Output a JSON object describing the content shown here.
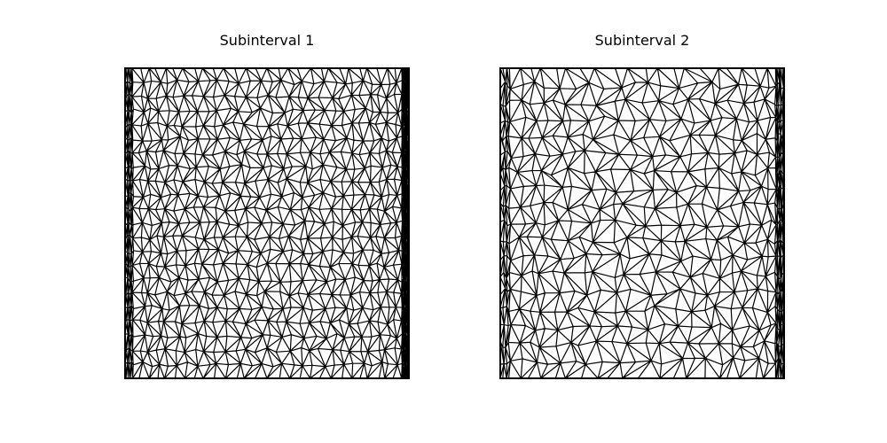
{
  "figure": {
    "panels": [
      {
        "title": "Subinterval 1",
        "mesh": {
          "type": "triangular",
          "refinement": "strong grading toward both vertical boundaries; dense interior"
        }
      },
      {
        "title": "Subinterval 2",
        "mesh": {
          "type": "triangular",
          "refinement": "moderate grading toward both vertical boundaries; coarser interior"
        }
      }
    ],
    "colors": {
      "background": "#ffffff",
      "edges": "#000000"
    }
  }
}
